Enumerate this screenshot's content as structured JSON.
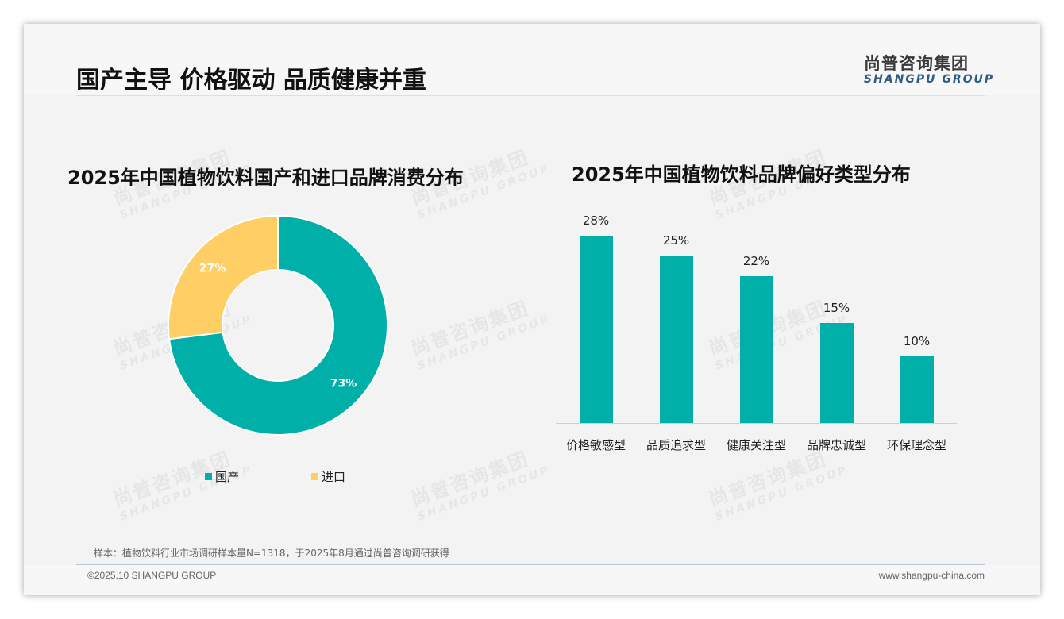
{
  "header": {
    "title": "国产主导 价格驱动 品质健康并重",
    "logo_cn": "尚普咨询集团",
    "logo_en": "SHANGPU GROUP"
  },
  "watermark": {
    "cn": "尚普咨询集团",
    "en": "SHANGPU GROUP"
  },
  "colors": {
    "teal": "#00b0a8",
    "yellow": "#ffcf66"
  },
  "chart_data": [
    {
      "type": "pie",
      "title": "2025年中国植物饮料国产和进口品牌消费分布",
      "donut": true,
      "categories": [
        "国产",
        "进口"
      ],
      "values": [
        73,
        27
      ],
      "labels": [
        "73%",
        "27%"
      ],
      "colors": [
        "#00b0a8",
        "#ffcf66"
      ],
      "legend_position": "bottom"
    },
    {
      "type": "bar",
      "title": "2025年中国植物饮料品牌偏好类型分布",
      "categories": [
        "价格敏感型",
        "品质追求型",
        "健康关注型",
        "品牌忠诚型",
        "环保理念型"
      ],
      "values": [
        28,
        25,
        22,
        15,
        10
      ],
      "labels": [
        "28%",
        "25%",
        "22%",
        "15%",
        "10%"
      ],
      "color": "#00b0a8",
      "xlabel": "",
      "ylabel": "",
      "ylim": [
        0,
        30
      ],
      "grid": false
    }
  ],
  "donut": {
    "legend": [
      {
        "label": "国产",
        "color": "#00b0a8"
      },
      {
        "label": "进口",
        "color": "#ffcf66"
      }
    ]
  },
  "footer": {
    "note": "样本：植物饮料行业市场调研样本量N=1318，于2025年8月通过尚普咨询调研获得",
    "copyright": "©2025.10 SHANGPU GROUP",
    "website": "www.shangpu-china.com"
  }
}
